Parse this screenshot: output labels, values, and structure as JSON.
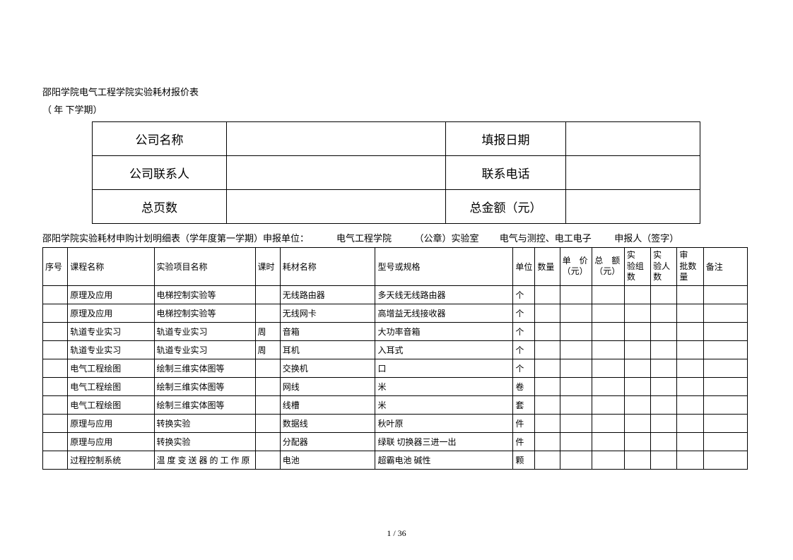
{
  "title_line1": "邵阳学院电气工程学院实验耗材报价表",
  "title_line2": "（ 年  下学期）",
  "header": {
    "company_name_label": "公司名称",
    "company_name_value": "",
    "fill_date_label": "填报日期",
    "fill_date_value": "",
    "contact_label": "公司联系人",
    "contact_value": "",
    "phone_label": "联系电话",
    "phone_value": "",
    "pages_label": "总页数",
    "pages_value": "",
    "amount_label": "总金额（元）",
    "amount_value": ""
  },
  "subtitle": "邵阳学院实验耗材申购计划明细表（学年度第一学期）申报单位：            电气工程学院          （公章）实验室         电气与测控、电工电子          申报人（签字）",
  "columns": {
    "seq": "序号",
    "course": "课程名称",
    "exp": "实验项目名称",
    "period": "课时",
    "material": "耗材名称",
    "spec": "型号或规格",
    "unit": "单位",
    "qty": "数量",
    "price": "单　价（元）",
    "total": "总　额（元）",
    "groups": "实　验组数",
    "people": "实　验人数",
    "audit": "审　批数量",
    "remark": "备注"
  },
  "rows": [
    {
      "seq": "",
      "course": "原理及应用",
      "exp": "电梯控制实验等",
      "period": "",
      "material": "无线路由器",
      "spec": "多天线无线路由器",
      "unit": "个",
      "qty": "",
      "price": "",
      "total": "",
      "groups": "",
      "people": "",
      "audit": "",
      "remark": ""
    },
    {
      "seq": "",
      "course": "原理及应用",
      "exp": "电梯控制实验等",
      "period": "",
      "material": "无线网卡",
      "spec": "高增益无线接收器",
      "unit": "个",
      "qty": "",
      "price": "",
      "total": "",
      "groups": "",
      "people": "",
      "audit": "",
      "remark": ""
    },
    {
      "seq": "",
      "course": "轨道专业实习",
      "exp": "轨道专业实习",
      "period": "周",
      "material": "音箱",
      "spec": "大功率音箱",
      "unit": "个",
      "qty": "",
      "price": "",
      "total": "",
      "groups": "",
      "people": "",
      "audit": "",
      "remark": ""
    },
    {
      "seq": "",
      "course": "轨道专业实习",
      "exp": "轨道专业实习",
      "period": "周",
      "material": "耳机",
      "spec": "入耳式",
      "unit": "个",
      "qty": "",
      "price": "",
      "total": "",
      "groups": "",
      "people": "",
      "audit": "",
      "remark": ""
    },
    {
      "seq": "",
      "course": "电气工程绘图",
      "exp": "绘制三维实体图等",
      "period": "",
      "material": "交换机",
      "spec": "口",
      "unit": "个",
      "qty": "",
      "price": "",
      "total": "",
      "groups": "",
      "people": "",
      "audit": "",
      "remark": ""
    },
    {
      "seq": "",
      "course": "电气工程绘图",
      "exp": "绘制三维实体图等",
      "period": "",
      "material": "网线",
      "spec": "米",
      "unit": "卷",
      "qty": "",
      "price": "",
      "total": "",
      "groups": "",
      "people": "",
      "audit": "",
      "remark": ""
    },
    {
      "seq": "",
      "course": "电气工程绘图",
      "exp": "绘制三维实体图等",
      "period": "",
      "material": "线槽",
      "spec": "米",
      "unit": "套",
      "qty": "",
      "price": "",
      "total": "",
      "groups": "",
      "people": "",
      "audit": "",
      "remark": ""
    },
    {
      "seq": "",
      "course": "原理与应用",
      "exp": "转换实验",
      "period": "",
      "material": "数据线",
      "spec": "秋叶原",
      "unit": "件",
      "qty": "",
      "price": "",
      "total": "",
      "groups": "",
      "people": "",
      "audit": "",
      "remark": ""
    },
    {
      "seq": "",
      "course": "原理与应用",
      "exp": "转换实验",
      "period": "",
      "material": "分配器",
      "spec": "绿联  切换器三进一出",
      "unit": "件",
      "qty": "",
      "price": "",
      "total": "",
      "groups": "",
      "people": "",
      "audit": "",
      "remark": ""
    },
    {
      "seq": "",
      "course": "过程控制系统",
      "exp": "温 度 变 送 器 的 工 作 原",
      "period": "",
      "material": "电池",
      "spec": "超霸电池   碱性",
      "unit": "颗",
      "qty": "",
      "price": "",
      "total": "",
      "groups": "",
      "people": "",
      "audit": "",
      "remark": ""
    }
  ],
  "page_num": "1 / 36"
}
